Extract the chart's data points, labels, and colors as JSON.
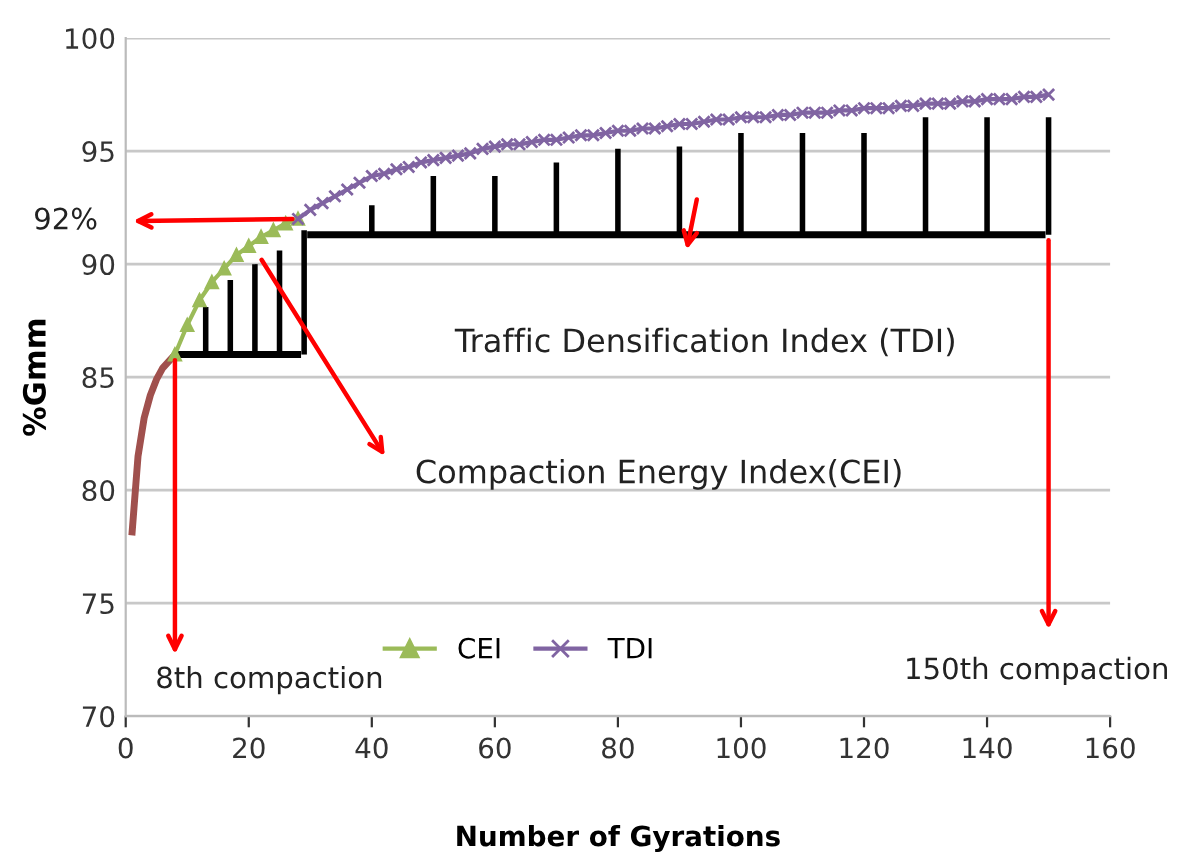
{
  "chart_data": {
    "type": "line",
    "xlabel": "Number of Gyrations",
    "ylabel": "%Gmm",
    "xlim": [
      0,
      160
    ],
    "xticks": [
      0,
      20,
      40,
      60,
      80,
      100,
      120,
      140,
      160
    ],
    "ylim": [
      70,
      100
    ],
    "yticks": [
      70,
      75,
      80,
      85,
      90,
      95,
      100
    ],
    "grid": "y",
    "legend": "bottom",
    "series": [
      {
        "color": "#a0504d",
        "marker": "none",
        "x": [
          1,
          2,
          3,
          4,
          5,
          6,
          7,
          8
        ],
        "values": [
          78.0,
          81.5,
          83.2,
          84.2,
          84.9,
          85.4,
          85.7,
          86.0
        ]
      },
      {
        "type": "bar",
        "color": "#000000",
        "x": [
          13,
          17,
          21,
          25,
          29
        ],
        "base": [
          86,
          86,
          86,
          86,
          86
        ],
        "values": [
          2.1,
          3.3,
          4.0,
          4.6,
          5.5
        ]
      },
      {
        "type": "bar",
        "color": "#000000",
        "x": [
          40,
          50,
          60,
          70,
          80,
          90,
          100,
          110,
          120,
          130,
          140,
          150
        ],
        "base": [
          91.3,
          91.3,
          91.3,
          91.3,
          91.3,
          91.3,
          91.3,
          91.3,
          91.3,
          91.3,
          91.3,
          91.3
        ],
        "values": [
          1.3,
          2.6,
          2.6,
          3.2,
          3.8,
          3.9,
          4.5,
          4.5,
          4.5,
          5.2,
          5.2,
          5.2
        ]
      },
      {
        "color": "#000000",
        "marker": "none",
        "x": [
          8,
          28.5
        ],
        "values": [
          86.0,
          86.0
        ]
      },
      {
        "color": "#000000",
        "marker": "none",
        "x": [
          29.5,
          149.5
        ],
        "values": [
          91.3,
          91.3
        ]
      },
      {
        "name": "CEI",
        "color": "#9bbb59",
        "marker": "triangle",
        "x": [
          8,
          10,
          12,
          14,
          16,
          18,
          20,
          22,
          24,
          26,
          28
        ],
        "values": [
          86.0,
          87.3,
          88.4,
          89.2,
          89.8,
          90.4,
          90.8,
          91.2,
          91.5,
          91.8,
          92.0
        ]
      },
      {
        "name": "TDI",
        "color": "#8064a2",
        "marker": "cross",
        "x": [
          28,
          30,
          32,
          34,
          36,
          38,
          40,
          42,
          44,
          46,
          48,
          50,
          52,
          54,
          56,
          58,
          60,
          62,
          64,
          66,
          68,
          70,
          72,
          74,
          76,
          78,
          80,
          82,
          84,
          86,
          88,
          90,
          92,
          94,
          96,
          98,
          100,
          102,
          104,
          106,
          108,
          110,
          112,
          114,
          116,
          118,
          120,
          122,
          124,
          126,
          128,
          130,
          132,
          134,
          136,
          138,
          140,
          142,
          144,
          146,
          148,
          150
        ],
        "values": [
          92.0,
          92.4,
          92.7,
          93.0,
          93.3,
          93.6,
          93.9,
          94.0,
          94.2,
          94.3,
          94.5,
          94.6,
          94.7,
          94.8,
          94.9,
          95.1,
          95.2,
          95.3,
          95.3,
          95.4,
          95.5,
          95.5,
          95.6,
          95.7,
          95.7,
          95.8,
          95.9,
          95.9,
          96.0,
          96.0,
          96.1,
          96.2,
          96.2,
          96.3,
          96.4,
          96.4,
          96.5,
          96.5,
          96.5,
          96.6,
          96.6,
          96.7,
          96.7,
          96.7,
          96.8,
          96.8,
          96.9,
          96.9,
          96.9,
          97.0,
          97.0,
          97.1,
          97.1,
          97.1,
          97.2,
          97.2,
          97.3,
          97.3,
          97.3,
          97.4,
          97.4,
          97.5
        ]
      }
    ],
    "annotations": [
      "92%",
      "Traffic Densification Index (TDI)",
      {
        "text": "Compaction Energy Index(CEI)",
        "x": 21.6,
        "y": 90.4
      },
      {
        "text": "8th compaction",
        "x": 8,
        "y": 86
      },
      {
        "text": "150th compaction",
        "x": 150,
        "y": 91.3
      }
    ]
  }
}
